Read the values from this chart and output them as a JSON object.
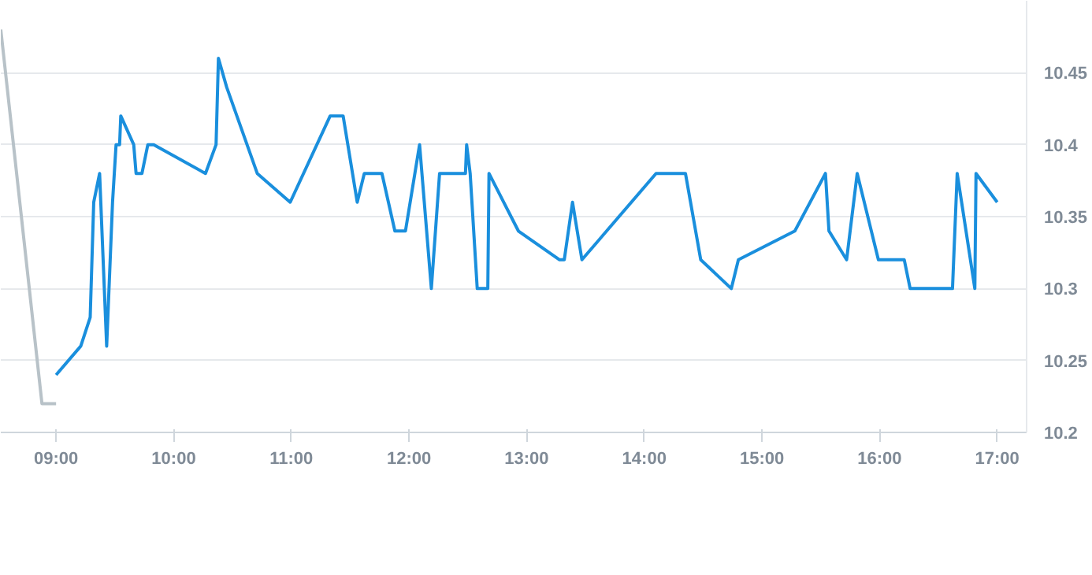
{
  "chart_data": {
    "type": "line",
    "xlim": [
      8.53,
      17.25
    ],
    "ylim": [
      10.2,
      10.5
    ],
    "xticks": [
      {
        "value": 9,
        "label": "09:00"
      },
      {
        "value": 10,
        "label": "10:00"
      },
      {
        "value": 11,
        "label": "11:00"
      },
      {
        "value": 12,
        "label": "12:00"
      },
      {
        "value": 13,
        "label": "13:00"
      },
      {
        "value": 14,
        "label": "14:00"
      },
      {
        "value": 15,
        "label": "15:00"
      },
      {
        "value": 16,
        "label": "16:00"
      },
      {
        "value": 17,
        "label": "17:00"
      }
    ],
    "yticks": [
      10.2,
      10.25,
      10.3,
      10.35,
      10.4,
      10.45
    ],
    "grid": "y",
    "marker": "none",
    "line_style": "solid",
    "series": [
      {
        "color": "#b8c2c8",
        "x": [
          8.53,
          8.88,
          9.0
        ],
        "values": [
          10.48,
          10.22,
          10.22
        ]
      },
      {
        "color": "#1a8fdd",
        "x": [
          9.0,
          9.21,
          9.29,
          9.32,
          9.37,
          9.43,
          9.48,
          9.51,
          9.54,
          9.55,
          9.66,
          9.68,
          9.73,
          9.78,
          9.83,
          10.27,
          10.36,
          10.38,
          10.45,
          10.71,
          10.99,
          11.33,
          11.44,
          11.56,
          11.62,
          11.77,
          11.88,
          11.97,
          12.09,
          12.19,
          12.26,
          12.48,
          12.49,
          12.52,
          12.58,
          12.67,
          12.68,
          12.93,
          13.28,
          13.32,
          13.39,
          13.47,
          14.1,
          14.35,
          14.48,
          14.74,
          14.8,
          15.28,
          15.54,
          15.57,
          15.72,
          15.81,
          15.99,
          16.21,
          16.26,
          16.62,
          16.66,
          16.81,
          16.82,
          17.0
        ],
        "values": [
          10.24,
          10.26,
          10.28,
          10.36,
          10.38,
          10.26,
          10.36,
          10.4,
          10.4,
          10.42,
          10.4,
          10.38,
          10.38,
          10.4,
          10.4,
          10.38,
          10.4,
          10.46,
          10.44,
          10.38,
          10.36,
          10.42,
          10.42,
          10.36,
          10.38,
          10.38,
          10.34,
          10.34,
          10.4,
          10.3,
          10.38,
          10.38,
          10.4,
          10.38,
          10.3,
          10.3,
          10.38,
          10.34,
          10.32,
          10.32,
          10.36,
          10.32,
          10.38,
          10.38,
          10.32,
          10.3,
          10.32,
          10.34,
          10.38,
          10.34,
          10.32,
          10.38,
          10.32,
          10.32,
          10.3,
          10.3,
          10.38,
          10.3,
          10.38,
          10.36
        ]
      }
    ]
  }
}
